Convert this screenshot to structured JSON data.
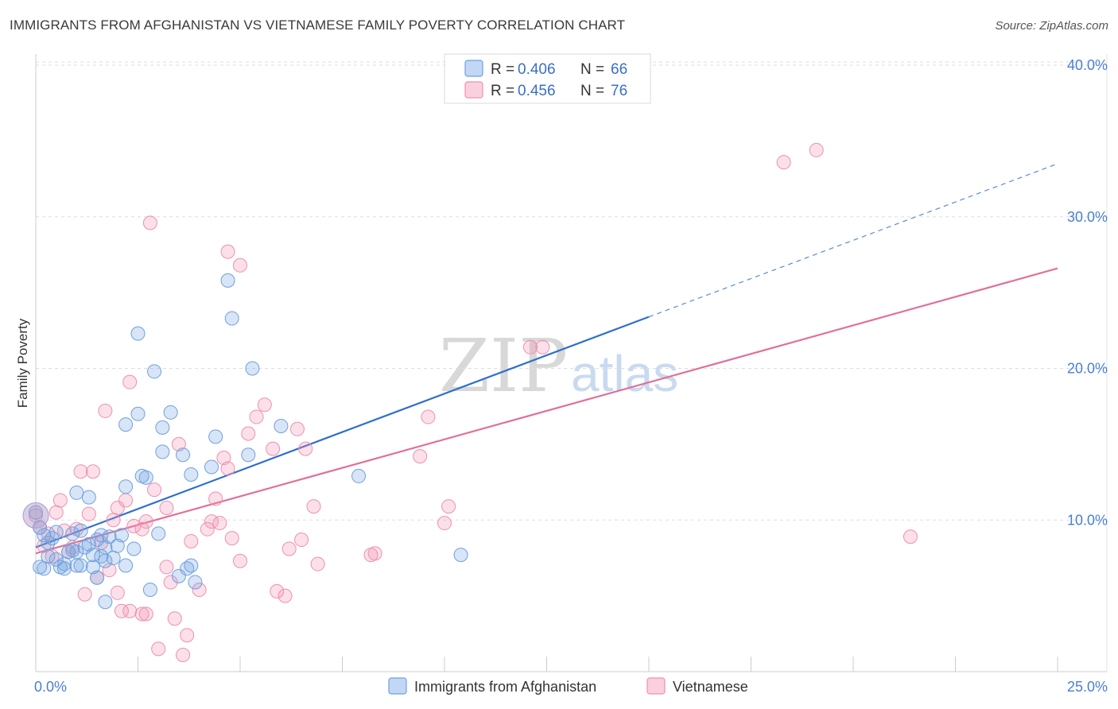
{
  "header": {
    "title": "IMMIGRANTS FROM AFGHANISTAN VS VIETNAMESE FAMILY POVERTY CORRELATION CHART",
    "source": "Source: ZipAtlas.com"
  },
  "watermark": {
    "zip": "ZIP",
    "atlas": "atlas"
  },
  "legend": {
    "rows": [
      {
        "r_label": "R =",
        "r_value": "0.406",
        "n_label": "N =",
        "n_value": "66",
        "color": "#6fa0e0"
      },
      {
        "r_label": "R =",
        "r_value": "0.456",
        "n_label": "N =",
        "n_value": "76",
        "color": "#f08fb0"
      }
    ]
  },
  "bottom_legend": {
    "items": [
      {
        "label": "Immigrants from Afghanistan",
        "color": "#6fa0e0"
      },
      {
        "label": "Vietnamese",
        "color": "#f08fb0"
      }
    ]
  },
  "chart_data": {
    "type": "scatter",
    "title": "IMMIGRANTS FROM AFGHANISTAN VS VIETNAMESE FAMILY POVERTY CORRELATION CHART",
    "xlabel": "",
    "ylabel": "Family Poverty",
    "xlim": [
      0,
      25
    ],
    "ylim": [
      0,
      40
    ],
    "x_tick_labels": [
      {
        "value": 0,
        "label": "0.0%"
      },
      {
        "value": 25,
        "label": "25.0%"
      }
    ],
    "y_tick_labels": [
      {
        "value": 10,
        "label": "10.0%"
      },
      {
        "value": 20,
        "label": "20.0%"
      },
      {
        "value": 30,
        "label": "30.0%"
      },
      {
        "value": 40,
        "label": "40.0%"
      }
    ],
    "x_minor_ticks": [
      2.5,
      5,
      7.5,
      10,
      12.5,
      15,
      17.5,
      20,
      22.5,
      25
    ],
    "colors": {
      "afghanistan": "#6fa0e0",
      "vietnamese": "#f08fb0",
      "afghanistan_line": "#2f6fcc",
      "vietnamese_line": "#e0709a"
    },
    "series": [
      {
        "name": "Immigrants from Afghanistan",
        "trend": {
          "x0": 0,
          "y0": 8.2,
          "x1": 15,
          "y1": 23.4,
          "dash_to_x": 25,
          "dash_to_y": 33.5
        },
        "points": [
          [
            0.0,
            10.5
          ],
          [
            0.1,
            9.5
          ],
          [
            0.2,
            9.0
          ],
          [
            0.2,
            6.8
          ],
          [
            0.3,
            8.5
          ],
          [
            0.4,
            8.8
          ],
          [
            0.5,
            7.4
          ],
          [
            0.6,
            6.9
          ],
          [
            0.7,
            7.1
          ],
          [
            0.7,
            6.8
          ],
          [
            0.8,
            7.9
          ],
          [
            0.9,
            9.1
          ],
          [
            1.0,
            7.0
          ],
          [
            1.0,
            7.9
          ],
          [
            1.0,
            11.8
          ],
          [
            1.1,
            7.0
          ],
          [
            1.2,
            8.2
          ],
          [
            1.3,
            11.5
          ],
          [
            1.3,
            8.4
          ],
          [
            1.4,
            6.9
          ],
          [
            1.4,
            7.7
          ],
          [
            1.5,
            6.2
          ],
          [
            1.5,
            8.7
          ],
          [
            1.6,
            7.6
          ],
          [
            1.7,
            4.6
          ],
          [
            1.7,
            8.2
          ],
          [
            1.7,
            7.3
          ],
          [
            1.8,
            8.9
          ],
          [
            1.9,
            7.5
          ],
          [
            2.1,
            9.0
          ],
          [
            2.2,
            12.2
          ],
          [
            2.2,
            7.0
          ],
          [
            2.2,
            16.3
          ],
          [
            2.4,
            8.1
          ],
          [
            2.5,
            17.0
          ],
          [
            2.5,
            22.3
          ],
          [
            2.6,
            12.9
          ],
          [
            2.7,
            12.8
          ],
          [
            2.8,
            5.4
          ],
          [
            3.0,
            9.1
          ],
          [
            2.9,
            19.8
          ],
          [
            3.1,
            14.5
          ],
          [
            3.1,
            16.1
          ],
          [
            3.3,
            17.1
          ],
          [
            3.5,
            6.3
          ],
          [
            3.6,
            14.3
          ],
          [
            3.7,
            6.8
          ],
          [
            3.8,
            7.0
          ],
          [
            3.8,
            13.0
          ],
          [
            3.9,
            5.9
          ],
          [
            4.3,
            13.5
          ],
          [
            4.4,
            15.5
          ],
          [
            4.7,
            25.8
          ],
          [
            4.8,
            23.3
          ],
          [
            5.2,
            14.3
          ],
          [
            5.3,
            20.0
          ],
          [
            6.0,
            16.2
          ],
          [
            7.9,
            12.9
          ],
          [
            10.4,
            7.7
          ],
          [
            0.1,
            6.9
          ],
          [
            0.5,
            9.2
          ],
          [
            0.9,
            8.0
          ],
          [
            1.1,
            9.3
          ],
          [
            1.6,
            9.0
          ],
          [
            2.0,
            8.3
          ],
          [
            0.3,
            7.6
          ]
        ]
      },
      {
        "name": "Vietnamese",
        "trend": {
          "x0": 0,
          "y0": 7.8,
          "x1": 25,
          "y1": 26.6
        },
        "points": [
          [
            0.0,
            10.3
          ],
          [
            0.1,
            9.5
          ],
          [
            0.2,
            8.3
          ],
          [
            0.3,
            9.1
          ],
          [
            0.4,
            7.6
          ],
          [
            0.5,
            10.5
          ],
          [
            0.6,
            11.3
          ],
          [
            0.7,
            9.3
          ],
          [
            0.9,
            8.2
          ],
          [
            1.0,
            9.4
          ],
          [
            1.1,
            13.2
          ],
          [
            1.2,
            5.1
          ],
          [
            1.3,
            10.4
          ],
          [
            1.4,
            13.2
          ],
          [
            1.5,
            6.2
          ],
          [
            1.6,
            8.5
          ],
          [
            1.7,
            17.2
          ],
          [
            1.9,
            10.0
          ],
          [
            2.0,
            10.8
          ],
          [
            2.0,
            5.2
          ],
          [
            2.1,
            4.0
          ],
          [
            2.2,
            11.3
          ],
          [
            2.3,
            4.0
          ],
          [
            2.3,
            19.1
          ],
          [
            2.6,
            3.8
          ],
          [
            2.6,
            9.4
          ],
          [
            2.7,
            9.9
          ],
          [
            2.7,
            3.8
          ],
          [
            2.8,
            29.6
          ],
          [
            2.9,
            12.0
          ],
          [
            3.0,
            1.5
          ],
          [
            3.2,
            10.8
          ],
          [
            3.2,
            6.9
          ],
          [
            3.3,
            5.9
          ],
          [
            3.4,
            3.5
          ],
          [
            3.5,
            15.0
          ],
          [
            3.6,
            1.1
          ],
          [
            3.7,
            2.4
          ],
          [
            3.8,
            8.6
          ],
          [
            4.0,
            5.4
          ],
          [
            4.2,
            9.4
          ],
          [
            4.3,
            9.9
          ],
          [
            4.4,
            11.4
          ],
          [
            4.5,
            9.8
          ],
          [
            4.6,
            14.1
          ],
          [
            4.7,
            13.4
          ],
          [
            4.7,
            27.7
          ],
          [
            4.8,
            8.8
          ],
          [
            5.0,
            7.3
          ],
          [
            5.0,
            26.8
          ],
          [
            5.2,
            15.7
          ],
          [
            5.4,
            16.8
          ],
          [
            5.6,
            17.6
          ],
          [
            5.8,
            14.7
          ],
          [
            5.9,
            5.3
          ],
          [
            6.1,
            5.0
          ],
          [
            6.2,
            8.1
          ],
          [
            6.4,
            16.0
          ],
          [
            6.5,
            8.7
          ],
          [
            6.6,
            14.7
          ],
          [
            6.8,
            10.9
          ],
          [
            6.9,
            7.1
          ],
          [
            8.2,
            7.7
          ],
          [
            8.3,
            7.8
          ],
          [
            9.4,
            14.2
          ],
          [
            9.6,
            16.8
          ],
          [
            10.0,
            9.8
          ],
          [
            10.1,
            10.9
          ],
          [
            12.1,
            21.4
          ],
          [
            12.4,
            21.4
          ],
          [
            18.3,
            33.6
          ],
          [
            19.1,
            34.4
          ],
          [
            21.4,
            8.9
          ],
          [
            0.8,
            7.9
          ],
          [
            1.8,
            6.7
          ],
          [
            2.4,
            9.6
          ]
        ]
      }
    ]
  }
}
